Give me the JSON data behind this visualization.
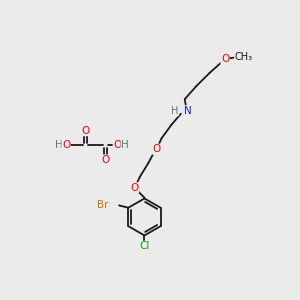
{
  "bg_color": "#ebebeb",
  "bond_color": "#1a1a1a",
  "colors": {
    "O": "#ff0000",
    "N": "#1a1aff",
    "Br": "#cc7700",
    "Cl": "#00aa00",
    "C": "#1a1a1a",
    "H": "#4d8080"
  },
  "font_size": 7.5,
  "bond_lw": 1.3
}
